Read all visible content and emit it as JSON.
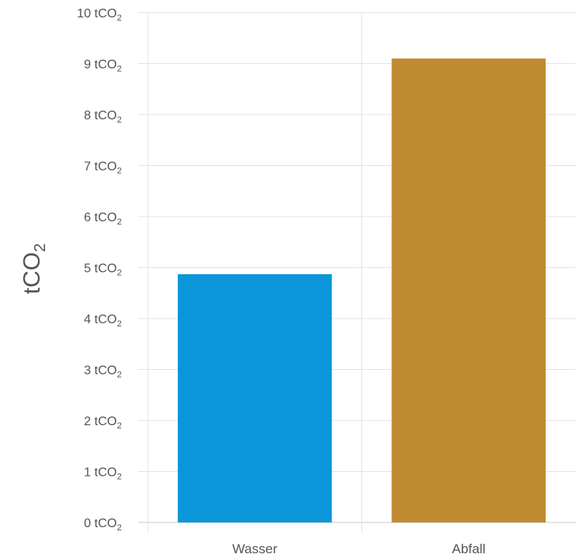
{
  "chart_data": {
    "type": "bar",
    "categories": [
      "Wasser",
      "Abfall"
    ],
    "values": [
      4.87,
      9.1
    ],
    "colors": [
      "#0a96d8",
      "#c08a31"
    ],
    "ylabel": "tCO₂",
    "ylim": [
      0,
      10
    ],
    "yticks": [
      0,
      1,
      2,
      3,
      4,
      5,
      6,
      7,
      8,
      9,
      10
    ],
    "ytick_suffix": " tCO",
    "ytick_subscript": "2",
    "grid": true,
    "legend": "none"
  }
}
